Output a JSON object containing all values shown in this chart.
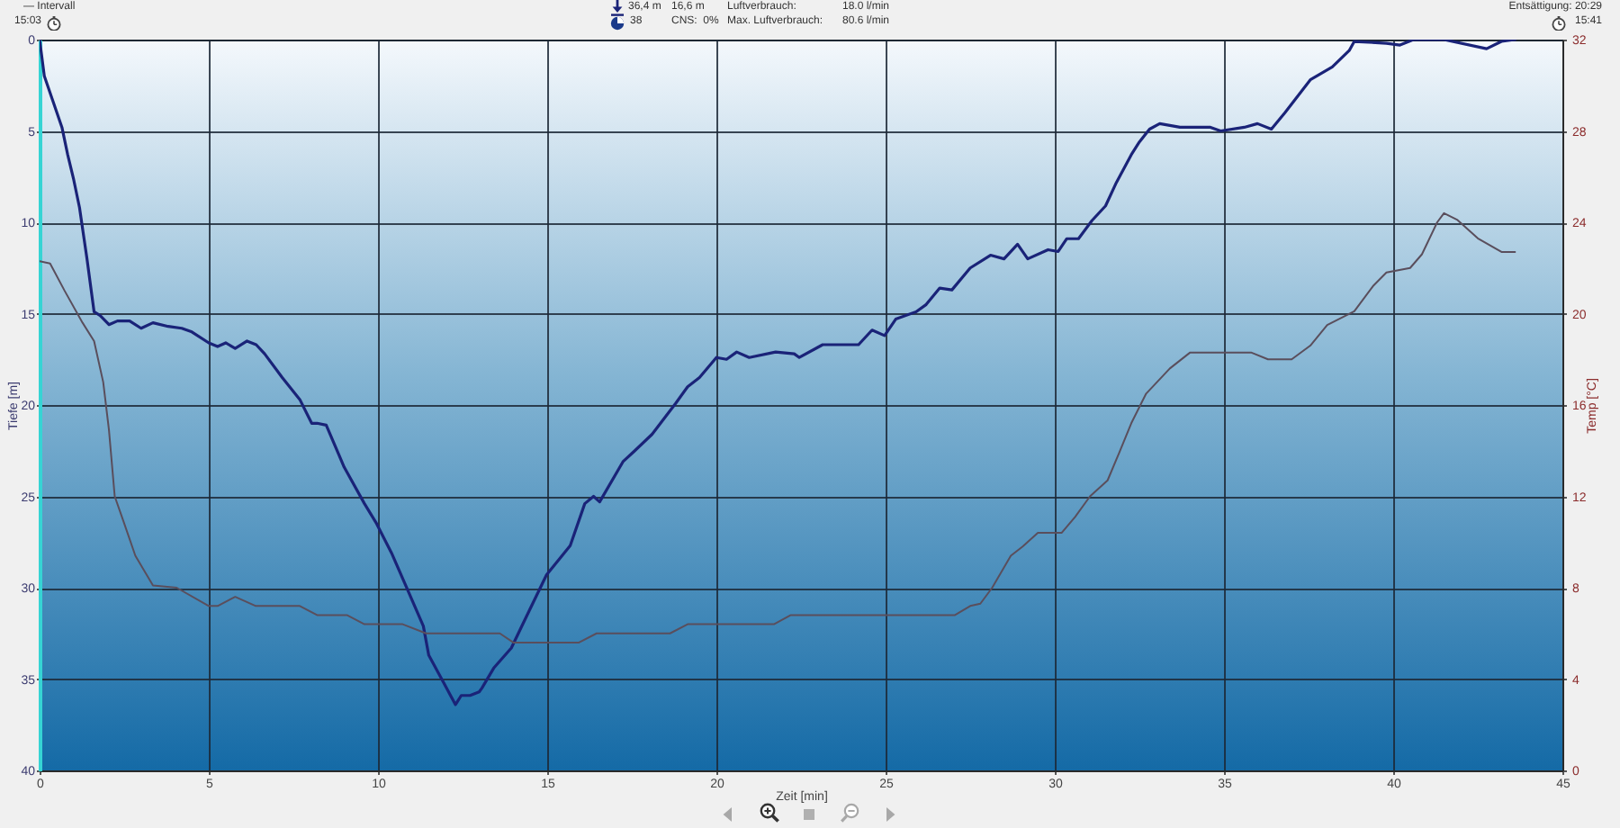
{
  "chart_data": {
    "type": "line",
    "xlabel": "Zeit [min]",
    "ylabel": "Tiefe [m]",
    "y2label": "Temp [°C]",
    "xlim": [
      0,
      45
    ],
    "xticks": [
      0,
      5,
      10,
      15,
      20,
      25,
      30,
      35,
      40,
      45
    ],
    "ylim": [
      40,
      0
    ],
    "yticks": [
      0,
      5,
      10,
      15,
      20,
      25,
      30,
      35,
      40
    ],
    "y2lim": [
      0,
      32
    ],
    "y2ticks": [
      0,
      4,
      8,
      12,
      16,
      20,
      24,
      28,
      32
    ],
    "grid": true,
    "series": [
      {
        "color": "#1a2378",
        "x": [
          0,
          0.14,
          0.4,
          0.66,
          0.83,
          1.0,
          1.18,
          1.4,
          1.61,
          1.79,
          2.05,
          2.3,
          2.66,
          3.0,
          3.35,
          3.8,
          4.2,
          4.5,
          5.0,
          5.26,
          5.5,
          5.78,
          6.13,
          6.4,
          6.65,
          7.17,
          7.69,
          8.04,
          8.2,
          8.47,
          9.0,
          9.6,
          9.96,
          10.4,
          10.8,
          11.34,
          11.5,
          11.94,
          12.29,
          12.46,
          12.72,
          12.99,
          13.07,
          13.42,
          13.94,
          14.38,
          14.98,
          15.68,
          16.11,
          16.37,
          16.55,
          17.24,
          17.59,
          18.1,
          18.8,
          19.15,
          19.5,
          20.0,
          20.3,
          20.6,
          20.97,
          21.75,
          22.3,
          22.45,
          23.14,
          24.2,
          24.6,
          24.97,
          25.3,
          25.9,
          26.2,
          26.6,
          26.96,
          27.5,
          28.1,
          28.5,
          28.9,
          29.2,
          29.8,
          30.1,
          30.35,
          30.7,
          31.1,
          31.5,
          31.8,
          32.26,
          32.5,
          32.8,
          33.1,
          33.7,
          34.6,
          34.9,
          35.6,
          35.99,
          36.4,
          36.8,
          37.55,
          38.2,
          38.7,
          38.85,
          39.8,
          40.2,
          40.6,
          41.5,
          42.76,
          43.2,
          43.6
        ],
        "values": [
          0,
          2.0,
          3.4,
          4.8,
          6.3,
          7.6,
          9.2,
          12.0,
          14.9,
          15.1,
          15.6,
          15.4,
          15.4,
          15.8,
          15.5,
          15.7,
          15.8,
          16.0,
          16.6,
          16.8,
          16.6,
          16.9,
          16.5,
          16.7,
          17.2,
          18.5,
          19.7,
          21.0,
          21.0,
          21.1,
          23.4,
          25.4,
          26.5,
          28.1,
          29.8,
          32.1,
          33.7,
          35.2,
          36.4,
          35.9,
          35.9,
          35.7,
          35.5,
          34.4,
          33.3,
          31.6,
          29.3,
          27.7,
          25.4,
          25.0,
          25.3,
          23.1,
          22.5,
          21.6,
          19.9,
          19.0,
          18.5,
          17.4,
          17.5,
          17.1,
          17.4,
          17.1,
          17.2,
          17.4,
          16.7,
          16.7,
          15.9,
          16.2,
          15.3,
          14.9,
          14.5,
          13.6,
          13.7,
          12.5,
          11.8,
          12.0,
          11.2,
          12.0,
          11.5,
          11.6,
          10.9,
          10.9,
          9.9,
          9.1,
          7.9,
          6.3,
          5.6,
          4.9,
          4.6,
          4.8,
          4.8,
          5.0,
          4.8,
          4.6,
          4.9,
          4.0,
          2.2,
          1.5,
          0.6,
          0.1,
          0.2,
          0.3,
          0.0,
          0.0,
          0.5,
          0.1,
          0.0
        ]
      },
      {
        "color": "#5a4e5c",
        "axis": "y2",
        "x": [
          0,
          0.31,
          0.74,
          1.27,
          1.61,
          1.88,
          2.05,
          2.22,
          2.48,
          2.83,
          3.35,
          4.05,
          5.0,
          5.26,
          5.78,
          6.39,
          7.69,
          8.2,
          9.08,
          9.6,
          10.73,
          11.42,
          13.6,
          14.0,
          15.94,
          16.46,
          18.63,
          19.15,
          21.7,
          22.2,
          27.05,
          27.5,
          27.8,
          28.15,
          28.7,
          29.05,
          29.5,
          30.2,
          30.6,
          31.04,
          31.56,
          31.9,
          32.26,
          32.7,
          33.4,
          34.0,
          35.8,
          36.3,
          37.0,
          37.55,
          38.05,
          38.85,
          39.4,
          39.8,
          40.5,
          40.85,
          41.3,
          41.5,
          41.9,
          42.5,
          43.2,
          43.6
        ],
        "values": [
          22.3,
          22.2,
          21.0,
          19.6,
          18.8,
          17.0,
          14.9,
          12.0,
          10.9,
          9.4,
          8.1,
          8.0,
          7.2,
          7.2,
          7.6,
          7.2,
          7.2,
          6.8,
          6.8,
          6.4,
          6.4,
          6.0,
          6.0,
          5.6,
          5.6,
          6.0,
          6.0,
          6.4,
          6.4,
          6.8,
          6.8,
          7.2,
          7.3,
          8.0,
          9.4,
          9.8,
          10.4,
          10.4,
          11.1,
          12.0,
          12.7,
          13.9,
          15.2,
          16.5,
          17.6,
          18.3,
          18.3,
          18.0,
          18.0,
          18.6,
          19.5,
          20.1,
          21.2,
          21.8,
          22.0,
          22.6,
          24.0,
          24.4,
          24.1,
          23.3,
          22.7,
          22.7
        ]
      }
    ],
    "annotations": [
      "— Intervall",
      "15:03",
      "36,4 m",
      "16,6 m",
      "Luftverbrauch:",
      "18.0 l/min",
      "38",
      "CNS:  0%",
      "Max. Luftverbrauch:",
      "80.6 l/min",
      "Entsättigung: 20:29",
      "15:41"
    ]
  }
}
